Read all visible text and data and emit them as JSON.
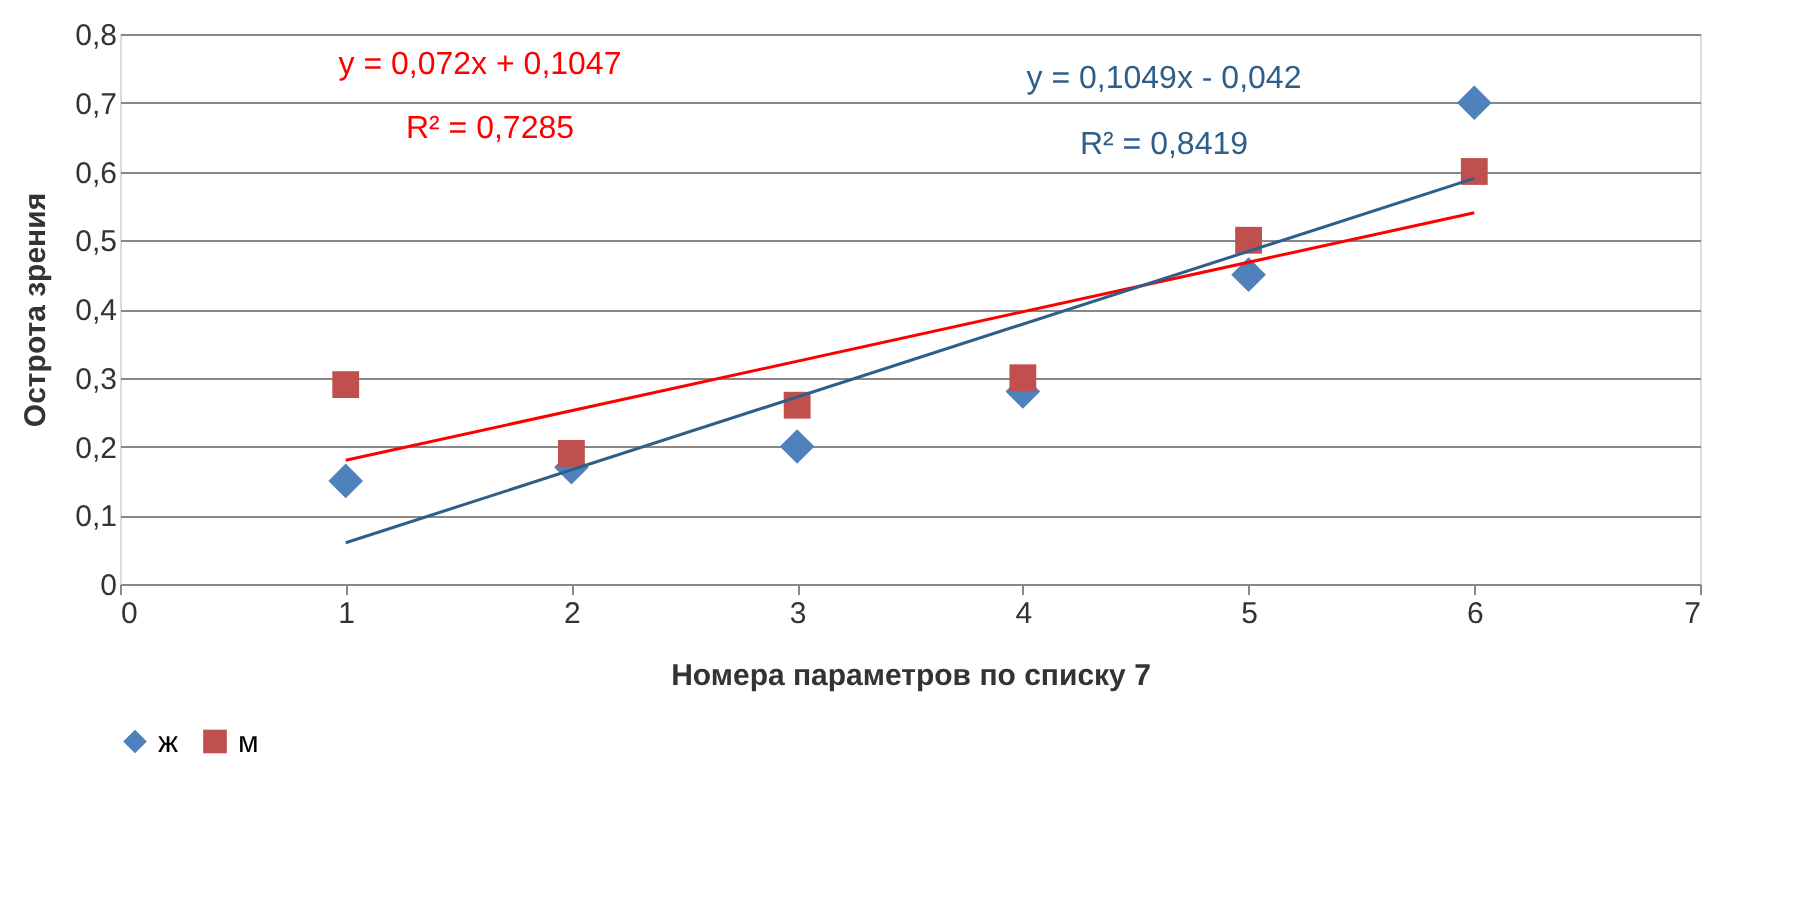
{
  "chart_data": {
    "type": "scatter",
    "xlabel": "Номера параметров по списку 7",
    "ylabel": "Острота зрения",
    "xlim": [
      0,
      7
    ],
    "xticks": [
      0,
      1,
      2,
      3,
      4,
      5,
      6,
      7
    ],
    "ylim": [
      0,
      0.8
    ],
    "yticks": [
      0,
      {
        "value": 0.1,
        "label": "0,1"
      },
      {
        "value": 0.2,
        "label": "0,2"
      },
      {
        "value": 0.3,
        "label": "0,3"
      },
      {
        "value": 0.4,
        "label": "0,4"
      },
      {
        "value": 0.5,
        "label": "0,5"
      },
      {
        "value": 0.6,
        "label": "0,6"
      },
      {
        "value": 0.7,
        "label": "0,7"
      },
      {
        "value": 0.8,
        "label": "0,8"
      }
    ],
    "grid": "y",
    "legend": "bottom",
    "series": [
      {
        "name": "ж",
        "color": "#4f81bd",
        "marker": "diamond",
        "x": [
          1,
          2,
          3,
          4,
          5,
          6
        ],
        "values": [
          0.15,
          0.17,
          0.2,
          0.28,
          0.45,
          0.7
        ]
      },
      {
        "name": "м",
        "color": "#c0504d",
        "marker": "square",
        "x": [
          1,
          2,
          3,
          4,
          5,
          6
        ],
        "values": [
          0.29,
          0.19,
          0.26,
          0.3,
          0.5,
          0.6
        ]
      },
      {
        "type": "line",
        "color": "#ff0000",
        "marker": "none",
        "x": [
          1,
          6
        ],
        "values": [
          0.18,
          0.54
        ]
      },
      {
        "type": "line",
        "color": "#2e5f8a",
        "marker": "none",
        "x": [
          1,
          6
        ],
        "values": [
          0.06,
          0.59
        ]
      }
    ],
    "annotations": [
      "y = 0,072x + 0,1047",
      "R² = 0,7285",
      "y = 0,1049x - 0,042",
      "R² = 0,8419"
    ]
  }
}
